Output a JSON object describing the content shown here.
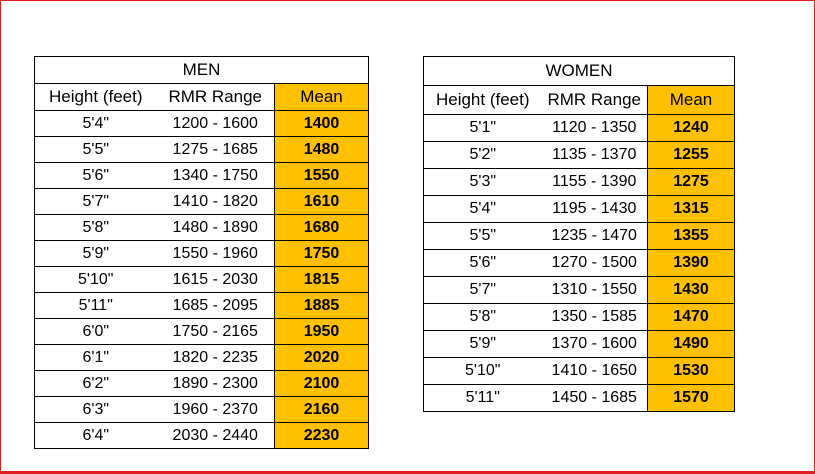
{
  "colors": {
    "mean_fill": "#ffc000",
    "frame": "#e02020"
  },
  "men": {
    "title": "MEN",
    "headers": {
      "height": "Height (feet)",
      "range": "RMR Range",
      "mean": "Mean"
    },
    "rows": [
      {
        "height": "5'4\"",
        "range": "1200 - 1600",
        "mean": "1400"
      },
      {
        "height": "5'5\"",
        "range": "1275 - 1685",
        "mean": "1480"
      },
      {
        "height": "5'6\"",
        "range": "1340 - 1750",
        "mean": "1550"
      },
      {
        "height": "5'7\"",
        "range": "1410 - 1820",
        "mean": "1610"
      },
      {
        "height": "5'8\"",
        "range": "1480 - 1890",
        "mean": "1680"
      },
      {
        "height": "5'9\"",
        "range": "1550 - 1960",
        "mean": "1750"
      },
      {
        "height": "5'10\"",
        "range": "1615 - 2030",
        "mean": "1815"
      },
      {
        "height": "5'11\"",
        "range": "1685 - 2095",
        "mean": "1885"
      },
      {
        "height": "6'0\"",
        "range": "1750 - 2165",
        "mean": "1950"
      },
      {
        "height": "6'1\"",
        "range": "1820 - 2235",
        "mean": "2020"
      },
      {
        "height": "6'2\"",
        "range": "1890 - 2300",
        "mean": "2100"
      },
      {
        "height": "6'3\"",
        "range": "1960 - 2370",
        "mean": "2160"
      },
      {
        "height": "6'4\"",
        "range": "2030 - 2440",
        "mean": "2230"
      }
    ]
  },
  "women": {
    "title": "WOMEN",
    "headers": {
      "height": "Height (feet)",
      "range": "RMR Range",
      "mean": "Mean"
    },
    "rows": [
      {
        "height": "5'1\"",
        "range": "1120 - 1350",
        "mean": "1240"
      },
      {
        "height": "5'2\"",
        "range": "1135 - 1370",
        "mean": "1255"
      },
      {
        "height": "5'3\"",
        "range": "1155 - 1390",
        "mean": "1275"
      },
      {
        "height": "5'4\"",
        "range": "1195 - 1430",
        "mean": "1315"
      },
      {
        "height": "5'5\"",
        "range": "1235 - 1470",
        "mean": "1355"
      },
      {
        "height": "5'6\"",
        "range": "1270 - 1500",
        "mean": "1390"
      },
      {
        "height": "5'7\"",
        "range": "1310 - 1550",
        "mean": "1430"
      },
      {
        "height": "5'8\"",
        "range": "1350 - 1585",
        "mean": "1470"
      },
      {
        "height": "5'9\"",
        "range": "1370 - 1600",
        "mean": "1490"
      },
      {
        "height": "5'10\"",
        "range": "1410 - 1650",
        "mean": "1530"
      },
      {
        "height": "5'11\"",
        "range": "1450 - 1685",
        "mean": "1570"
      }
    ]
  }
}
